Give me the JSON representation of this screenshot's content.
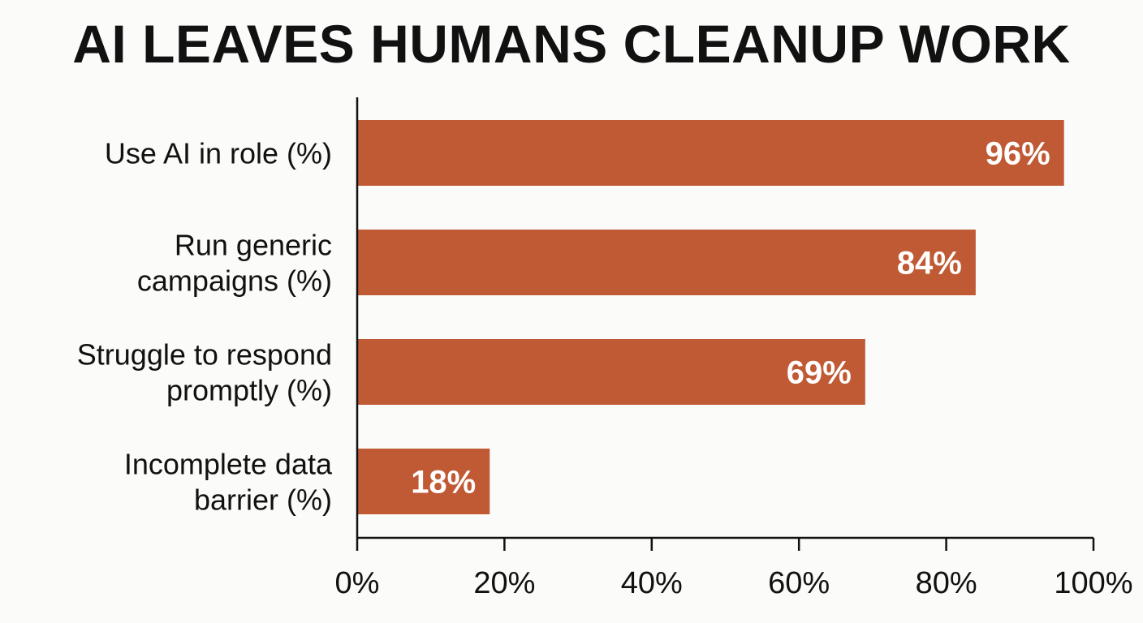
{
  "chart_data": {
    "type": "bar",
    "orientation": "horizontal",
    "title": "AI LEAVES HUMANS CLEANUP WORK",
    "categories": [
      [
        "Use AI in role (%)"
      ],
      [
        "Run generic",
        "campaigns  (%)"
      ],
      [
        "Struggle to respond",
        "promptly (%)"
      ],
      [
        "Incomplete data",
        "barrier (%)"
      ]
    ],
    "values": [
      96,
      84,
      69,
      18
    ],
    "value_labels": [
      "96%",
      "84%",
      "69%",
      "18%"
    ],
    "x_ticks": [
      0,
      20,
      40,
      60,
      80,
      100
    ],
    "x_tick_labels": [
      "0%",
      "20%",
      "40%",
      "60%",
      "80%",
      "100%"
    ],
    "xlim": [
      0,
      100
    ],
    "xlabel": "",
    "ylabel": "",
    "grid": false,
    "legend": "none",
    "bar_color": "#c05a35"
  }
}
